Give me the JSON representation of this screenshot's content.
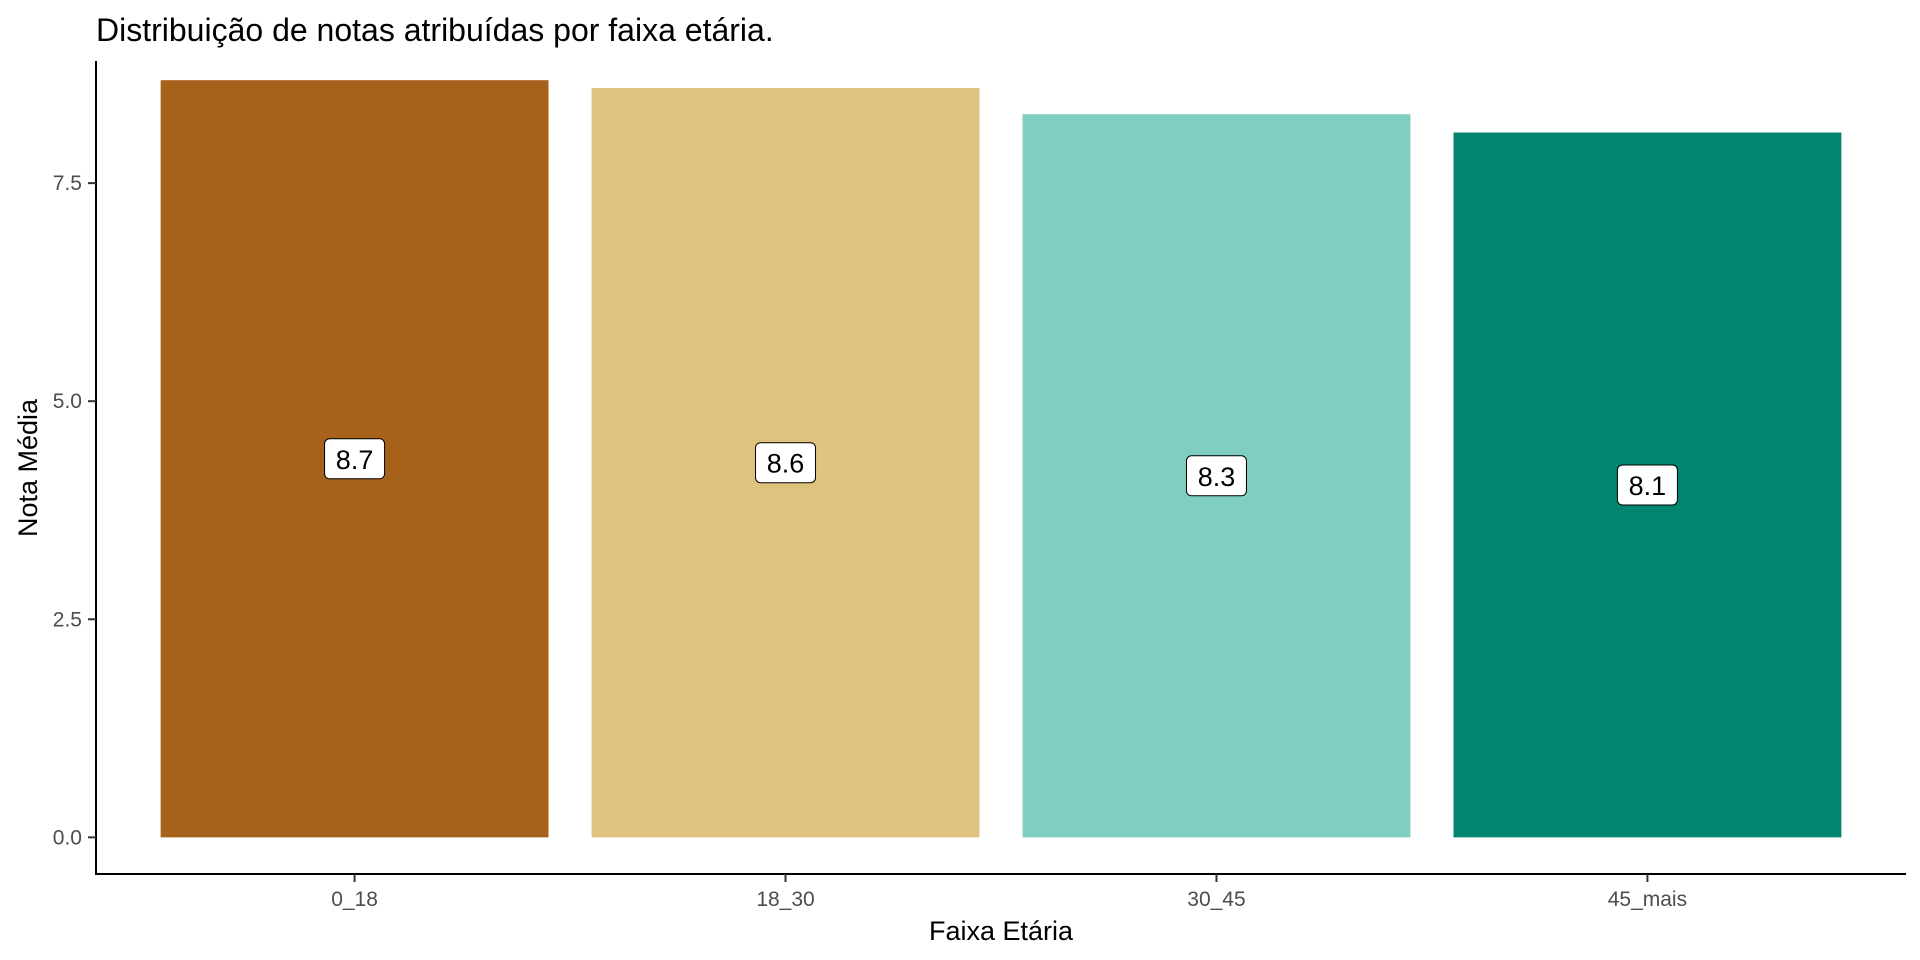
{
  "chart_data": {
    "type": "bar",
    "title": "Distribuição de notas atribuídas por faixa etária.",
    "xlabel": "Faixa Etária",
    "ylabel": "Nota Média",
    "categories": [
      "0_18",
      "18_30",
      "30_45",
      "45_mais"
    ],
    "values": [
      8.68,
      8.59,
      8.29,
      8.08
    ],
    "data_labels": [
      "8.7",
      "8.6",
      "8.3",
      "8.1"
    ],
    "colors": [
      "#A6611A",
      "#DFC27D",
      "#80CDC1",
      "#018571"
    ],
    "ylim": [
      -0.42,
      8.9
    ],
    "yticks": [
      0.0,
      2.5,
      5.0,
      7.5
    ],
    "ytick_labels": [
      "0.0",
      "2.5",
      "5.0",
      "7.5"
    ],
    "grid": false,
    "legend": "none"
  }
}
